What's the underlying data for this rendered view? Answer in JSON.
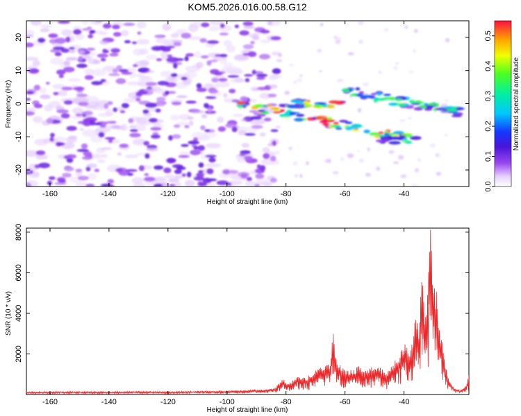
{
  "title": "KOM5.2026.016.00.58.G12",
  "colors": {
    "snr_line": "#e8282a",
    "spectrogram_base": "#7a1fe0"
  },
  "chart_data": [
    {
      "type": "heatmap",
      "name": "spectrogram",
      "title": "KOM5.2026.016.00.58.G12",
      "xlabel": "Height of straight line (km)",
      "ylabel": "Frequency (Hz)",
      "xlim": [
        -168,
        -18
      ],
      "ylim": [
        -25,
        25
      ],
      "xticks": [
        -160,
        -140,
        -120,
        -100,
        -80,
        -60,
        -40
      ],
      "xtick_labels": [
        "-160",
        "-140",
        "-120",
        "-100",
        "-80",
        "-60",
        "-40"
      ],
      "yticks": [
        -20,
        -10,
        0,
        10,
        20
      ],
      "ytick_labels": [
        "-20",
        "-10",
        "0",
        "10",
        "20"
      ],
      "colorbar": {
        "label": "Normalized spectral amplitude",
        "range": [
          0,
          0.55
        ],
        "ticks": [
          0,
          0.1,
          0.2,
          0.3,
          0.4,
          0.5
        ],
        "tick_labels": [
          "0.0",
          "0.1",
          "0.2",
          "0.3",
          "0.4",
          "0.5"
        ],
        "colormap": "white-purple-blue-cyan-green-yellow-red"
      },
      "features": [
        {
          "from_km": -168,
          "to_km": -83,
          "freq_range": [
            -25,
            25
          ],
          "amplitude": 0.05,
          "kind": "noise"
        },
        {
          "from_km": -96,
          "to_km": -36,
          "freq_start": 0,
          "freq_end": -11,
          "peak_amplitude": 0.55,
          "kind": "descending-branch"
        },
        {
          "from_km": -60,
          "to_km": -20,
          "freq_start": 4,
          "freq_end": -3,
          "peak_amplitude": 0.35,
          "kind": "upper-branch"
        },
        {
          "from_km": -82,
          "to_km": -60,
          "freq": 0,
          "peak_amplitude": 0.55,
          "kind": "core"
        },
        {
          "from_km": -48,
          "to_km": -40,
          "freq": -11,
          "peak_amplitude": 0.15,
          "kind": "weak-tail"
        }
      ]
    },
    {
      "type": "line",
      "name": "snr",
      "xlabel": "Height of straight line (km)",
      "ylabel": "SNR (10 * v/v)",
      "xlim": [
        -168,
        -18
      ],
      "ylim": [
        0,
        8200
      ],
      "xticks": [
        -160,
        -140,
        -120,
        -100,
        -80,
        -60,
        -40
      ],
      "xtick_labels": [
        "-160",
        "-140",
        "-120",
        "-100",
        "-80",
        "-60",
        "-40"
      ],
      "yticks": [
        2000,
        4000,
        6000,
        8000
      ],
      "ytick_labels": [
        "2000",
        "4000",
        "6000",
        "8000"
      ],
      "series": [
        {
          "name": "SNR",
          "x": [
            -168,
            -160,
            -150,
            -140,
            -130,
            -120,
            -110,
            -100,
            -90,
            -84,
            -81,
            -79,
            -76,
            -73,
            -70,
            -67,
            -65,
            -64,
            -63,
            -61,
            -58,
            -55,
            -52,
            -49,
            -46,
            -44,
            -42,
            -40,
            -38,
            -36,
            -35,
            -34,
            -33,
            -32,
            -31,
            -30,
            -29,
            -28,
            -27,
            -26,
            -25,
            -23,
            -21,
            -19,
            -18
          ],
          "y": [
            120,
            130,
            140,
            125,
            150,
            130,
            160,
            170,
            220,
            280,
            700,
            500,
            900,
            800,
            1100,
            1400,
            1500,
            2800,
            1600,
            1200,
            1100,
            1300,
            1200,
            1300,
            1000,
            1400,
            1700,
            2400,
            1800,
            3600,
            3100,
            5600,
            4000,
            4800,
            8200,
            5200,
            4700,
            3200,
            2400,
            1300,
            800,
            300,
            200,
            400,
            900
          ]
        }
      ]
    }
  ]
}
